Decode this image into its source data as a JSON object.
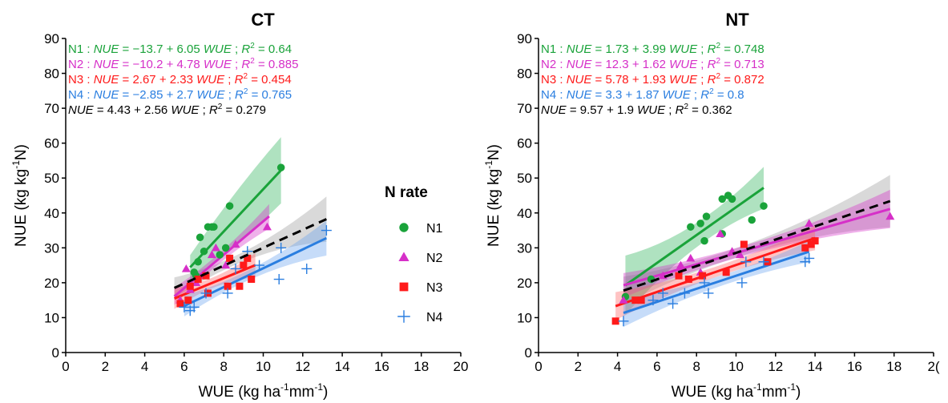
{
  "chart_data": [
    {
      "type": "scatter",
      "title": "CT",
      "xlabel_main": "WUE (kg ha",
      "xlabel_sup1": "-1",
      "xlabel_mid": "mm",
      "xlabel_sup2": "-1",
      "xlabel_end": ")",
      "ylabel_main": "NUE (kg kg",
      "ylabel_sup": "-1",
      "ylabel_end": "N)",
      "xlim": [
        0,
        20
      ],
      "ylim": [
        0,
        90
      ],
      "xticks": [
        "0",
        "2",
        "4",
        "6",
        "8",
        "10",
        "12",
        "14",
        "16",
        "18",
        "20"
      ],
      "yticks": [
        "0",
        "10",
        "20",
        "30",
        "40",
        "50",
        "60",
        "70",
        "80",
        "90"
      ],
      "equations": [
        {
          "prefix": "N1 : ",
          "lhs": "NUE",
          "body": " = −13.7 + 6.05 ",
          "var": "WUE",
          "sep": " ;  ",
          "r2label": "R",
          "r2sup": "2",
          "r2val": " = 0.64",
          "color": "#1aa33a"
        },
        {
          "prefix": "N2 : ",
          "lhs": "NUE",
          "body": " = −10.2 + 4.78 ",
          "var": "WUE",
          "sep": " ;  ",
          "r2label": "R",
          "r2sup": "2",
          "r2val": " = 0.885",
          "color": "#d62fc8"
        },
        {
          "prefix": "N3 : ",
          "lhs": "NUE",
          "body": " = 2.67 + 2.33 ",
          "var": "WUE",
          "sep": " ;  ",
          "r2label": "R",
          "r2sup": "2",
          "r2val": " = 0.454",
          "color": "#ff1a1a"
        },
        {
          "prefix": "N4 : ",
          "lhs": "NUE",
          "body": " = −2.85 + 2.7 ",
          "var": "WUE",
          "sep": " ;  ",
          "r2label": "R",
          "r2sup": "2",
          "r2val": " = 0.765",
          "color": "#2a7ee0"
        },
        {
          "prefix": "",
          "lhs": "NUE",
          "body": " = 4.43 + 2.56 ",
          "var": "WUE",
          "sep": " ;  ",
          "r2label": "R",
          "r2sup": "2",
          "r2val": " = 0.279",
          "color": "#000000"
        }
      ],
      "series": [
        {
          "name": "N1",
          "marker": "circle",
          "color": "#1aa33a",
          "band": "#2db35a",
          "points": [
            [
              6.5,
              23
            ],
            [
              6.6,
              22
            ],
            [
              6.7,
              26
            ],
            [
              6.8,
              33
            ],
            [
              7.0,
              29
            ],
            [
              7.2,
              36
            ],
            [
              7.4,
              36
            ],
            [
              7.5,
              36
            ],
            [
              7.8,
              28
            ],
            [
              8.1,
              30
            ],
            [
              8.3,
              42
            ],
            [
              10.9,
              53
            ]
          ],
          "fit": [
            6.3,
            10.9
          ],
          "intercept": -13.7,
          "slope": 6.05,
          "band_half": [
            3.5,
            7.5,
            9.5
          ]
        },
        {
          "name": "N2",
          "marker": "triangle",
          "color": "#d62fc8",
          "band": "#d62fc8",
          "points": [
            [
              5.8,
              15
            ],
            [
              6.1,
              24
            ],
            [
              6.3,
              18
            ],
            [
              6.6,
              20
            ],
            [
              7.0,
              22
            ],
            [
              7.4,
              28
            ],
            [
              7.6,
              30
            ],
            [
              8.1,
              25
            ],
            [
              8.6,
              31
            ],
            [
              10.2,
              36
            ]
          ],
          "fit": [
            5.5,
            10.3
          ],
          "intercept": -10.2,
          "slope": 4.78,
          "band_half": [
            2.5,
            1.5,
            3.5
          ]
        },
        {
          "name": "N3",
          "marker": "square",
          "color": "#ff1a1a",
          "band": "#ff6060",
          "points": [
            [
              5.8,
              14
            ],
            [
              6.2,
              15
            ],
            [
              6.3,
              19
            ],
            [
              6.7,
              21
            ],
            [
              7.1,
              22
            ],
            [
              7.2,
              17
            ],
            [
              8.2,
              19
            ],
            [
              8.3,
              27
            ],
            [
              8.8,
              19
            ],
            [
              9.0,
              25
            ],
            [
              9.2,
              27
            ],
            [
              9.4,
              21
            ]
          ],
          "fit": [
            5.5,
            9.6
          ],
          "intercept": 2.67,
          "slope": 2.33,
          "band_half": [
            3.0,
            1.5,
            3.5
          ]
        },
        {
          "name": "N4",
          "marker": "plus",
          "color": "#2a7ee0",
          "band": "#6aa4ee",
          "points": [
            [
              6.0,
              13
            ],
            [
              6.3,
              12
            ],
            [
              6.5,
              13
            ],
            [
              7.1,
              17
            ],
            [
              8.2,
              17
            ],
            [
              8.6,
              24
            ],
            [
              9.2,
              29
            ],
            [
              9.8,
              25
            ],
            [
              10.8,
              21
            ],
            [
              10.9,
              30
            ],
            [
              12.2,
              24
            ],
            [
              13.2,
              35
            ]
          ],
          "fit": [
            6.0,
            13.2
          ],
          "intercept": -2.85,
          "slope": 2.7,
          "band_half": [
            3.0,
            1.5,
            5.0
          ]
        }
      ],
      "pooled": {
        "intercept": 4.43,
        "slope": 2.56,
        "fit": [
          5.5,
          13.2
        ],
        "color": "#000000",
        "band_half": [
          3.0,
          1.5,
          6.5
        ]
      }
    },
    {
      "type": "scatter",
      "title": "NT",
      "xlabel_main": "WUE (kg ha",
      "xlabel_sup1": "-1",
      "xlabel_mid": "mm",
      "xlabel_sup2": "-1",
      "xlabel_end": ")",
      "ylabel_main": "NUE (kg kg",
      "ylabel_sup": "-1",
      "ylabel_end": "N)",
      "xlim": [
        0,
        20
      ],
      "ylim": [
        0,
        90
      ],
      "xticks": [
        "0",
        "2",
        "4",
        "6",
        "8",
        "10",
        "12",
        "14",
        "16",
        "18",
        "2("
      ],
      "yticks": [
        "0",
        "10",
        "20",
        "30",
        "40",
        "50",
        "60",
        "70",
        "80",
        "90"
      ],
      "equations": [
        {
          "prefix": "N1 : ",
          "lhs": "NUE",
          "body": " = 1.73 + 3.99 ",
          "var": "WUE",
          "sep": " ;  ",
          "r2label": "R",
          "r2sup": "2",
          "r2val": " = 0.748",
          "color": "#1aa33a"
        },
        {
          "prefix": "N2 : ",
          "lhs": "NUE",
          "body": " = 12.3 + 1.62 ",
          "var": "WUE",
          "sep": " ;  ",
          "r2label": "R",
          "r2sup": "2",
          "r2val": " = 0.713",
          "color": "#d62fc8"
        },
        {
          "prefix": "N3 : ",
          "lhs": "NUE",
          "body": " = 5.78 + 1.93 ",
          "var": "WUE",
          "sep": " ;  ",
          "r2label": "R",
          "r2sup": "2",
          "r2val": " = 0.872",
          "color": "#ff1a1a"
        },
        {
          "prefix": "N4 : ",
          "lhs": "NUE",
          "body": " = 3.3 + 1.87 ",
          "var": "WUE",
          "sep": " ;  ",
          "r2label": "R",
          "r2sup": "2",
          "r2val": " = 0.8",
          "color": "#2a7ee0"
        },
        {
          "prefix": "",
          "lhs": "NUE",
          "body": " = 9.57 + 1.9 ",
          "var": "WUE",
          "sep": " ;  ",
          "r2label": "R",
          "r2sup": "2",
          "r2val": " = 0.362",
          "color": "#000000"
        }
      ],
      "series": [
        {
          "name": "N1",
          "marker": "circle",
          "color": "#1aa33a",
          "band": "#2db35a",
          "points": [
            [
              4.4,
              16
            ],
            [
              5.7,
              21
            ],
            [
              7.7,
              36
            ],
            [
              8.2,
              37
            ],
            [
              8.4,
              32
            ],
            [
              8.5,
              39
            ],
            [
              9.3,
              34
            ],
            [
              9.3,
              44
            ],
            [
              9.6,
              45
            ],
            [
              9.8,
              44
            ],
            [
              10.8,
              38
            ],
            [
              11.4,
              42
            ]
          ],
          "fit": [
            4.4,
            11.4
          ],
          "intercept": 1.73,
          "slope": 3.99,
          "band_half": [
            8.5,
            3.5,
            6.0
          ]
        },
        {
          "name": "N2",
          "marker": "triangle",
          "color": "#d62fc8",
          "band": "#d62fc8",
          "points": [
            [
              4.3,
              15
            ],
            [
              6.3,
              22
            ],
            [
              7.2,
              25
            ],
            [
              7.7,
              27
            ],
            [
              8.2,
              23
            ],
            [
              9.2,
              34
            ],
            [
              9.8,
              29
            ],
            [
              10.2,
              28
            ],
            [
              13.7,
              37
            ],
            [
              17.8,
              39
            ]
          ],
          "fit": [
            4.3,
            17.8
          ],
          "intercept": 12.3,
          "slope": 1.62,
          "band_half": [
            3.5,
            1.5,
            5.5
          ]
        },
        {
          "name": "N3",
          "marker": "square",
          "color": "#ff1a1a",
          "band": "#ff6060",
          "points": [
            [
              3.9,
              9
            ],
            [
              4.9,
              15
            ],
            [
              5.2,
              15
            ],
            [
              7.1,
              22
            ],
            [
              7.6,
              21
            ],
            [
              8.3,
              22
            ],
            [
              9.5,
              23
            ],
            [
              10.4,
              31
            ],
            [
              11.6,
              26
            ],
            [
              13.5,
              30
            ],
            [
              13.8,
              31
            ],
            [
              14.0,
              32
            ]
          ],
          "fit": [
            3.9,
            14.0
          ],
          "intercept": 5.78,
          "slope": 1.93,
          "band_half": [
            4.0,
            1.5,
            3.5
          ]
        },
        {
          "name": "N4",
          "marker": "plus",
          "color": "#2a7ee0",
          "band": "#6aa4ee",
          "points": [
            [
              4.3,
              9
            ],
            [
              5.8,
              15
            ],
            [
              6.3,
              17
            ],
            [
              6.8,
              14
            ],
            [
              7.4,
              17
            ],
            [
              8.4,
              20
            ],
            [
              8.6,
              17
            ],
            [
              10.3,
              20
            ],
            [
              10.5,
              26
            ],
            [
              11.4,
              26
            ],
            [
              13.5,
              26
            ],
            [
              13.7,
              27
            ]
          ],
          "fit": [
            4.3,
            13.7
          ],
          "intercept": 3.3,
          "slope": 1.87,
          "band_half": [
            4.0,
            1.5,
            3.0
          ]
        }
      ],
      "pooled": {
        "intercept": 9.57,
        "slope": 1.9,
        "fit": [
          4.3,
          17.8
        ],
        "color": "#000000",
        "band_half": [
          4.0,
          1.5,
          7.5
        ]
      }
    }
  ],
  "legend": {
    "title": "N rate",
    "items": [
      {
        "name": "N1",
        "marker": "circle",
        "color": "#1aa33a"
      },
      {
        "name": "N2",
        "marker": "triangle",
        "color": "#d62fc8"
      },
      {
        "name": "N3",
        "marker": "square",
        "color": "#ff1a1a"
      },
      {
        "name": "N4",
        "marker": "plus",
        "color": "#2a7ee0"
      }
    ]
  }
}
